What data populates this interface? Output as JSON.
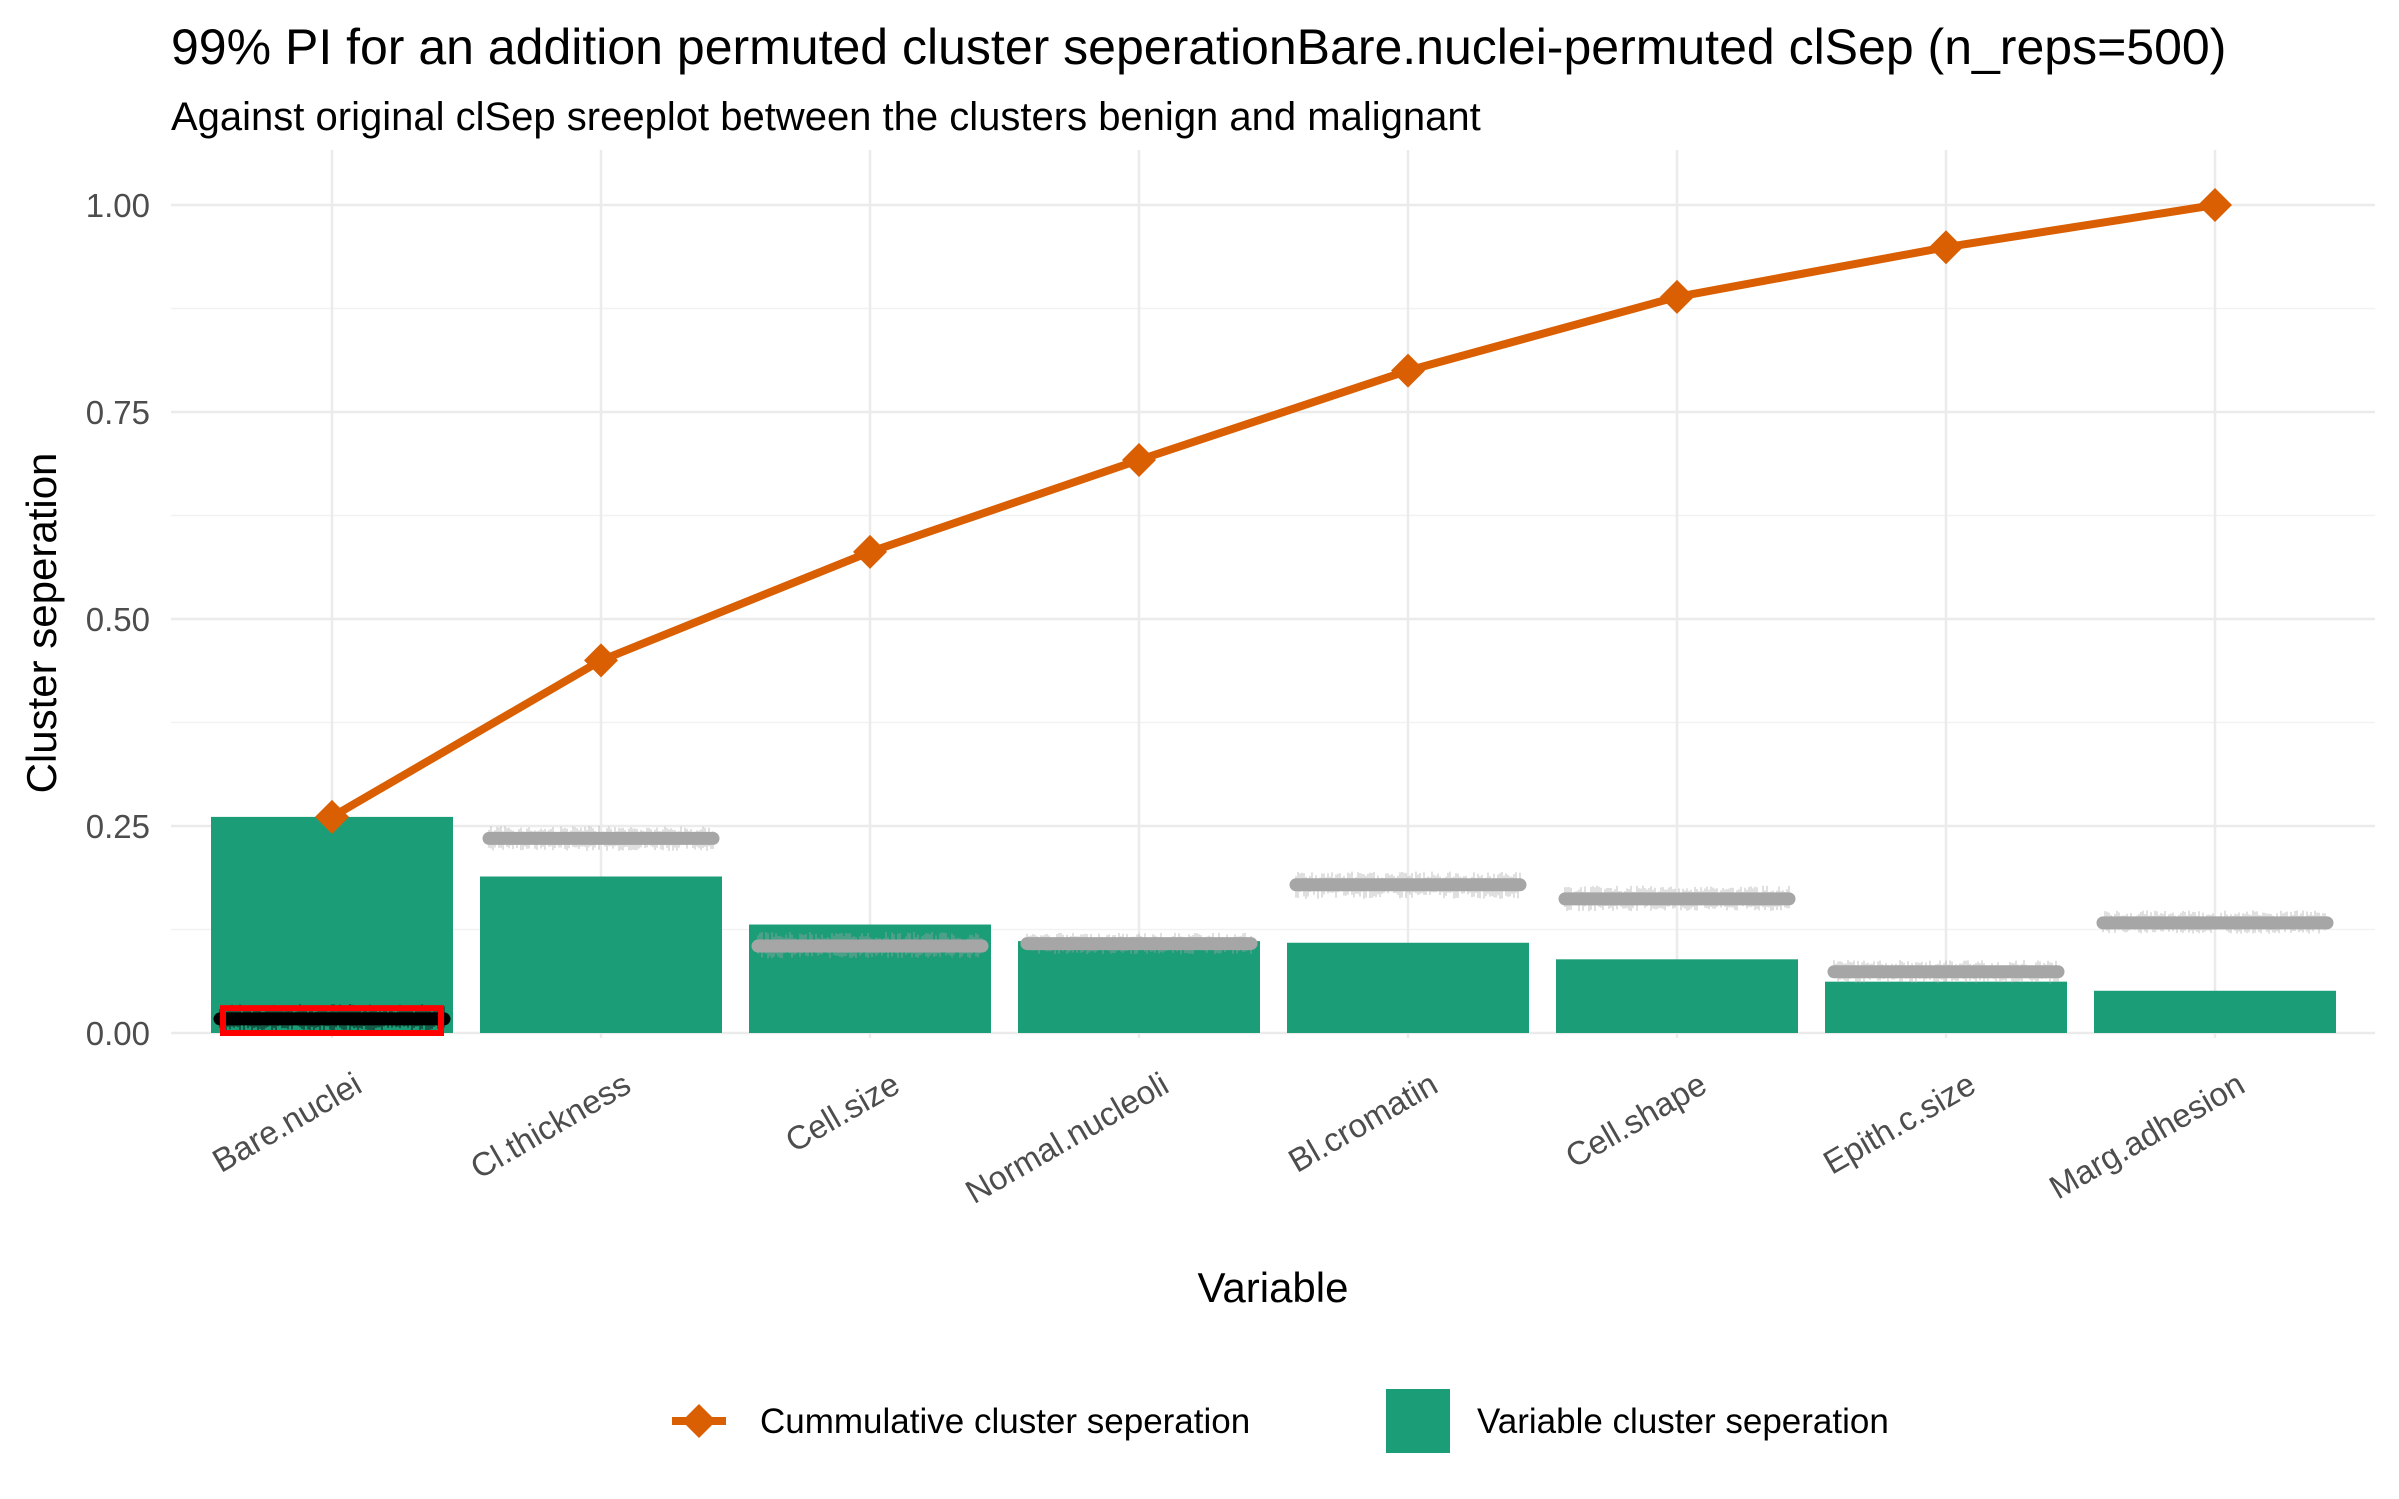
{
  "chart_data": {
    "type": "bar",
    "title": "99% PI for an addition permuted cluster seperationBare.nuclei-permuted clSep (n_reps=500)",
    "subtitle": "Against original clSep sreeplot between the clusters benign and malignant",
    "xlabel": "Variable",
    "ylabel": "Cluster seperation",
    "ylim": [
      0,
      1.0
    ],
    "yticks": [
      "0.00",
      "0.25",
      "0.50",
      "0.75",
      "1.00"
    ],
    "ytick_values": [
      0,
      0.25,
      0.5,
      0.75,
      1.0
    ],
    "grid": true,
    "legend_position": "bottom",
    "categories": [
      "Bare.nuclei",
      "Cl.thickness",
      "Cell.size",
      "Normal.nucleoli",
      "Bl.cromatin",
      "Cell.shape",
      "Epith.c.size",
      "Marg.adhesion"
    ],
    "series": [
      {
        "name": "Variable cluster seperation",
        "type": "bar",
        "color": "#1b9e77",
        "values": [
          0.261,
          0.189,
          0.131,
          0.111,
          0.109,
          0.089,
          0.062,
          0.051
        ]
      },
      {
        "name": "Cummulative cluster seperation",
        "type": "line",
        "color": "#d95f02",
        "values": [
          0.261,
          0.45,
          0.581,
          0.692,
          0.8,
          0.889,
          0.949,
          1.0
        ]
      }
    ],
    "permuted_intervals": {
      "color": "#a6a6a6",
      "highlight_color": "#000000",
      "values": [
        0.017,
        0.235,
        0.105,
        0.108,
        0.179,
        0.162,
        0.074,
        0.133
      ],
      "lower": [
        0.002,
        0.22,
        0.09,
        0.095,
        0.162,
        0.147,
        0.06,
        0.12
      ],
      "upper": [
        0.035,
        0.25,
        0.122,
        0.121,
        0.195,
        0.178,
        0.088,
        0.148
      ]
    },
    "highlight": {
      "category": "Bare.nuclei",
      "color": "#ff0000"
    }
  }
}
